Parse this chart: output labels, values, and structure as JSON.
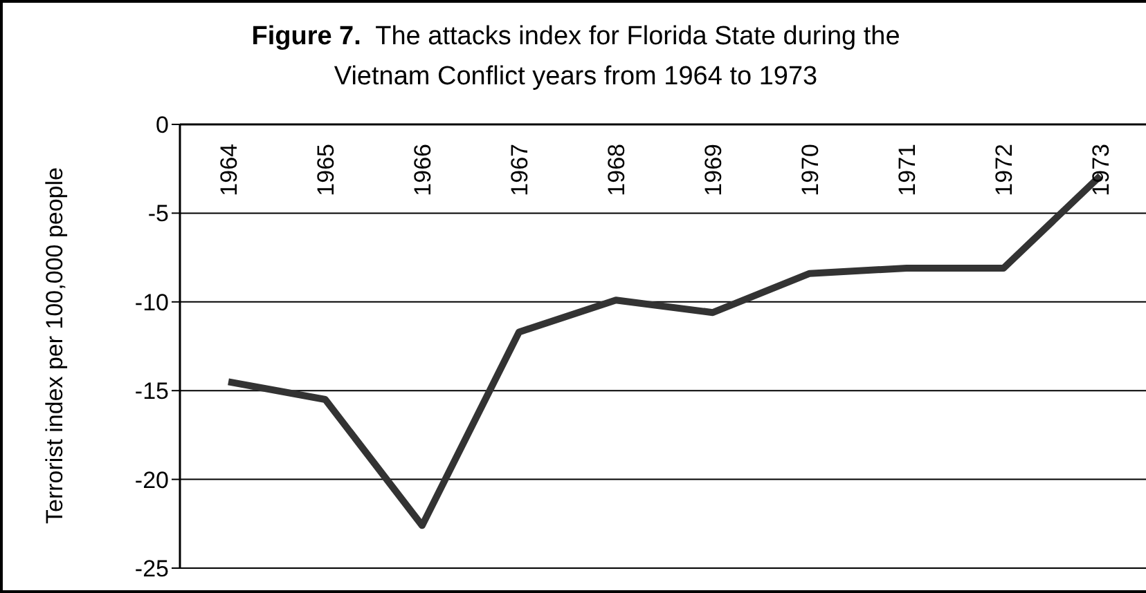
{
  "chart_data": {
    "type": "line",
    "title": "Figure 7.  The attacks index for Florida State during the Vietnam Conflict years from 1964 to 1973",
    "ylabel": "Terrorist index per 100,000 people",
    "categories": [
      "1964",
      "1965",
      "1966",
      "1967",
      "1968",
      "1969",
      "1970",
      "1971",
      "1972",
      "1973"
    ],
    "series": [
      {
        "color": "#333333",
        "values": [
          -14.5,
          -15.5,
          -22.6,
          -11.7,
          -9.9,
          -10.6,
          -8.4,
          -8.1,
          -8.1,
          -2.9
        ]
      }
    ],
    "ylim": [
      -25,
      0
    ],
    "yticks": [
      -25,
      -20,
      -15,
      -10,
      -5,
      0
    ],
    "grid": "y",
    "legend": false,
    "marker": "none",
    "line_style": "solid"
  }
}
